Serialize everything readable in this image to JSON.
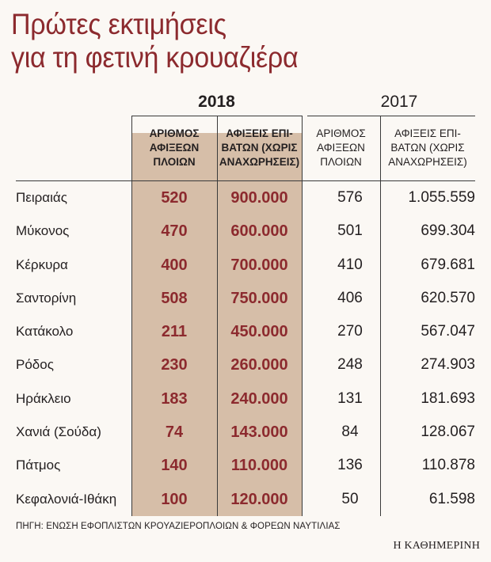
{
  "title_line1": "Πρώτες εκτιμήσεις",
  "title_line2": "για τη φετινή κρουαζιέρα",
  "source": "ΠΗΓΗ: ΕΝΩΣΗ ΕΦΟΠΛΙΣΤΩΝ ΚΡΟΥΑΖΙΕΡΟΠΛΟΙΩΝ & ΦΟΡΕΩΝ ΝΑΥΤΙΛΙΑΣ",
  "brand": "Η ΚΑΘΗΜΕΡΙΝΗ",
  "colors": {
    "accent": "#8c2a2e",
    "shade": "#d6bea8",
    "background": "#fbf8f4"
  },
  "chart_data": {
    "type": "table",
    "title": "Πρώτες εκτιμήσεις για τη φετινή κρουαζιέρα",
    "years": [
      "2018",
      "2017"
    ],
    "columns": [
      {
        "year": "2018",
        "label": "ΑΡΙΘΜΟΣ\nΑΦΙΞΕΩΝ\nΠΛΟΙΩΝ"
      },
      {
        "year": "2018",
        "label": "ΑΦΙΞΕΙΣ ΕΠΙ-\nΒΑΤΩΝ (ΧΩΡΙΣ\nΑΝΑΧΩΡΗΣΕΙΣ)"
      },
      {
        "year": "2017",
        "label": "ΑΡΙΘΜΟΣ\nΑΦΙΞΕΩΝ\nΠΛΟΙΩΝ"
      },
      {
        "year": "2017",
        "label": "ΑΦΙΞΕΙΣ ΕΠΙ-\nΒΑΤΩΝ (ΧΩΡΙΣ\nΑΝΑΧΩΡΗΣΕΙΣ)"
      }
    ],
    "rows": [
      {
        "port": "Πειραιάς",
        "ships_2018": "520",
        "pax_2018": "900.000",
        "ships_2017": "576",
        "pax_2017": "1.055.559"
      },
      {
        "port": "Μύκονος",
        "ships_2018": "470",
        "pax_2018": "600.000",
        "ships_2017": "501",
        "pax_2017": "699.304"
      },
      {
        "port": "Κέρκυρα",
        "ships_2018": "400",
        "pax_2018": "700.000",
        "ships_2017": "410",
        "pax_2017": "679.681"
      },
      {
        "port": "Σαντορίνη",
        "ships_2018": "508",
        "pax_2018": "750.000",
        "ships_2017": "406",
        "pax_2017": "620.570"
      },
      {
        "port": "Κατάκολο",
        "ships_2018": "211",
        "pax_2018": "450.000",
        "ships_2017": "270",
        "pax_2017": "567.047"
      },
      {
        "port": "Ρόδος",
        "ships_2018": "230",
        "pax_2018": "260.000",
        "ships_2017": "248",
        "pax_2017": "274.903"
      },
      {
        "port": "Ηράκλειο",
        "ships_2018": "183",
        "pax_2018": "240.000",
        "ships_2017": "131",
        "pax_2017": "181.693"
      },
      {
        "port": "Χανιά (Σούδα)",
        "ships_2018": "74",
        "pax_2018": "143.000",
        "ships_2017": "84",
        "pax_2017": "128.067"
      },
      {
        "port": "Πάτμος",
        "ships_2018": "140",
        "pax_2018": "110.000",
        "ships_2017": "136",
        "pax_2017": "110.878"
      },
      {
        "port": "Κεφαλονιά-Ιθάκη",
        "ships_2018": "100",
        "pax_2018": "120.000",
        "ships_2017": "50",
        "pax_2017": "61.598"
      }
    ]
  }
}
